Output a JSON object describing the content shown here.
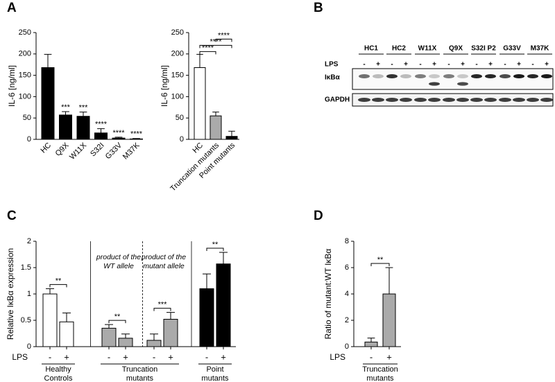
{
  "panel_labels": [
    "A",
    "B",
    "C",
    "D"
  ],
  "chart_data": [
    {
      "type": "bar",
      "ylabel": "IL-6 [ng/ml]",
      "categories": [
        "HC",
        "Q9X",
        "W11X",
        "S32I",
        "G33V",
        "M37K"
      ],
      "values": [
        168,
        57,
        54,
        15,
        3,
        1
      ],
      "errors": [
        31,
        8,
        10,
        10,
        2,
        1
      ],
      "color": "#000000",
      "annotations": [
        null,
        "***",
        "***",
        "****",
        "****",
        "****"
      ],
      "ylim": [
        0,
        250
      ],
      "yticks": [
        0,
        50,
        100,
        150,
        200,
        250
      ]
    },
    {
      "type": "bar",
      "ylabel": "IL-6 [ng/ml]",
      "categories": [
        "HC",
        "Truncation mutants",
        "Point mutants"
      ],
      "values": [
        168,
        55,
        7
      ],
      "errors": [
        31,
        9,
        12
      ],
      "colors": [
        "#ffffff",
        "#aaaaaa",
        "#000000"
      ],
      "brackets": [
        {
          "between": [
            "HC",
            "Truncation mutants"
          ],
          "label": "****"
        },
        {
          "between": [
            "HC",
            "Point mutants"
          ],
          "label": "****"
        },
        {
          "between": [
            "Truncation mutants",
            "Point mutants"
          ],
          "label": "****"
        }
      ],
      "ylim": [
        0,
        250
      ],
      "yticks": [
        0,
        50,
        100,
        150,
        200,
        250
      ]
    },
    {
      "type": "grouped_bar",
      "ylabel": "Relative IκBα expression",
      "x_label": "LPS",
      "groups": [
        {
          "name": [
            "Healthy",
            "Controls"
          ],
          "subgroups": [
            {
              "categories": [
                "-",
                "+"
              ],
              "values": [
                1,
                0.47
              ],
              "errors": [
                0.1,
                0.17
              ],
              "color": "#ffffff",
              "significance": "**"
            }
          ]
        },
        {
          "name": [
            "Truncation",
            "mutants"
          ],
          "subgroups": [
            {
              "annotation": [
                "product of the",
                "WT allele"
              ],
              "categories": [
                "-",
                "+"
              ],
              "values": [
                0.35,
                0.16
              ],
              "errors": [
                0.07,
                0.08
              ],
              "color": "#aaaaaa",
              "significance": "**"
            },
            {
              "annotation": [
                "product of the",
                "mutant allele"
              ],
              "categories": [
                "-",
                "+"
              ],
              "values": [
                0.12,
                0.52
              ],
              "errors": [
                0.12,
                0.13
              ],
              "color": "#aaaaaa",
              "significance": "***"
            }
          ]
        },
        {
          "name": [
            "Point",
            "mutants"
          ],
          "subgroups": [
            {
              "categories": [
                "-",
                "+"
              ],
              "values": [
                1.1,
                1.57
              ],
              "errors": [
                0.28,
                0.22
              ],
              "color": "#000000",
              "significance": "**"
            }
          ]
        }
      ],
      "ylim": [
        0,
        2
      ],
      "yticks": [
        0,
        0.5,
        1,
        1.5,
        2
      ]
    },
    {
      "type": "grouped_bar",
      "ylabel": "Ratio of mutant:WT IκBα",
      "x_label": "LPS",
      "groups": [
        {
          "name": [
            "Truncation",
            "mutants"
          ],
          "subgroups": [
            {
              "categories": [
                "-",
                "+"
              ],
              "values": [
                0.35,
                4
              ],
              "errors": [
                0.3,
                2
              ],
              "color": "#aaaaaa",
              "significance": "**"
            }
          ]
        }
      ],
      "ylim": [
        0,
        8
      ],
      "yticks": [
        0,
        2,
        4,
        6,
        8
      ]
    }
  ],
  "blot": {
    "samples": [
      "HC1",
      "HC2",
      "W11X",
      "Q9X",
      "S32I P2",
      "G33V",
      "M37K"
    ],
    "lps_label": "LPS",
    "lps_states": [
      "-",
      "+"
    ],
    "rows": [
      "IκBα",
      "GAPDH"
    ]
  }
}
